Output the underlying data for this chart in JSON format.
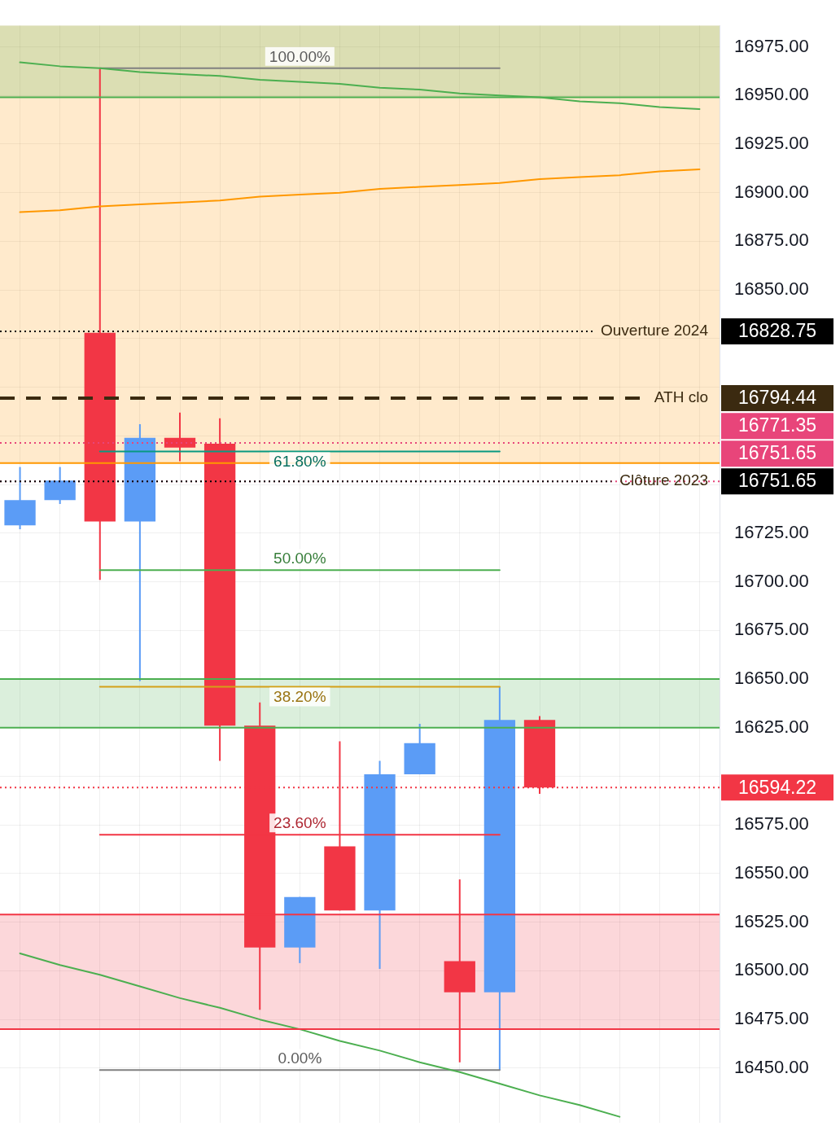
{
  "chart_data": {
    "type": "candlestick",
    "categories": [
      null,
      null,
      null,
      null,
      null,
      null,
      null,
      null,
      null,
      null,
      null,
      null,
      null,
      null,
      null,
      null,
      null,
      null
    ],
    "ohlc": [
      [
        16729,
        16759,
        16727,
        16742
      ],
      [
        16742,
        16759,
        16740,
        16752
      ],
      [
        16828,
        16964,
        16701,
        16731
      ],
      [
        16731,
        16781,
        16649,
        16774
      ],
      [
        16774,
        16787,
        16762,
        16769
      ],
      [
        16771,
        16784,
        16608,
        16626
      ],
      [
        16626,
        16638,
        16480,
        16512
      ],
      [
        16512,
        16538,
        16504,
        16538
      ],
      [
        16564,
        16618,
        16531,
        16531
      ],
      [
        16531,
        16608,
        16501,
        16601
      ],
      [
        16601,
        16627,
        16601,
        16617
      ],
      [
        16505,
        16547,
        16453,
        16489
      ],
      [
        16489,
        16646,
        16449,
        16629
      ],
      [
        16629,
        16631,
        16591,
        16594.22
      ],
      null,
      null,
      null,
      null
    ],
    "colors": [
      "#5b9cf6",
      "#5b9cf6",
      "#f23645",
      "#5b9cf6",
      "#f23645",
      "#f23645",
      "#f23645",
      "#5b9cf6",
      "#f23645",
      "#5b9cf6",
      "#5b9cf6",
      "#f23645",
      "#5b9cf6",
      "#f23645",
      null,
      null,
      null,
      null
    ],
    "ylim": [
      16422,
      16986
    ],
    "yticks": [
      {
        "value": 16450,
        "label": "16450.00"
      },
      {
        "value": 16475,
        "label": "16475.00"
      },
      {
        "value": 16500,
        "label": "16500.00"
      },
      {
        "value": 16525,
        "label": "16525.00"
      },
      {
        "value": 16550,
        "label": "16550.00"
      },
      {
        "value": 16575,
        "label": "16575.00"
      },
      {
        "value": 16600,
        "label": null
      },
      {
        "value": 16625,
        "label": "16625.00"
      },
      {
        "value": 16650,
        "label": "16650.00"
      },
      {
        "value": 16675,
        "label": "16675.00"
      },
      {
        "value": 16700,
        "label": "16700.00"
      },
      {
        "value": 16725,
        "label": "16725.00"
      },
      {
        "value": 16750,
        "label": null
      },
      {
        "value": 16775,
        "label": null
      },
      {
        "value": 16800,
        "label": null
      },
      {
        "value": 16825,
        "label": null
      },
      {
        "value": 16850,
        "label": "16850.00"
      },
      {
        "value": 16875,
        "label": "16875.00"
      },
      {
        "value": 16900,
        "label": "16900.00"
      },
      {
        "value": 16925,
        "label": "16925.00"
      },
      {
        "value": 16950,
        "label": "16950.00"
      },
      {
        "value": 16975,
        "label": "16975.00"
      }
    ],
    "grid": true,
    "tick_labels": "y",
    "bands": [
      {
        "axis": "y",
        "from": 16761,
        "to": 16986,
        "color": "#ff9800"
      },
      {
        "axis": "y",
        "from": 16949,
        "to": 16986,
        "color": "#4caf50"
      },
      {
        "axis": "y",
        "from": 16625,
        "to": 16650,
        "color": "#4caf50"
      },
      {
        "axis": "y",
        "from": 16470,
        "to": 16529,
        "color": "#f23645"
      }
    ],
    "series": [
      {
        "type": "line",
        "color": "#4caf50",
        "values": [
          16967,
          16965,
          16964,
          16962,
          16961,
          16960,
          16958,
          16957,
          16956,
          16954,
          16953,
          16951,
          16950,
          16949,
          16947,
          16946,
          16944,
          16943
        ]
      },
      {
        "type": "line",
        "color": "#ff9800",
        "values": [
          16890,
          16891,
          16893,
          16894,
          16895,
          16896,
          16898,
          16899,
          16900,
          16902,
          16903,
          16904,
          16905,
          16907,
          16908,
          16909,
          16911,
          16912
        ]
      },
      {
        "type": "line",
        "color": "#4caf50",
        "values": [
          16509,
          16503,
          16498,
          16492,
          16486,
          16481,
          16475,
          16470,
          16464,
          16459,
          16453,
          16448,
          16442,
          16436,
          16431,
          16425,
          null,
          null
        ]
      },
      {
        "type": "line",
        "name": "100.00%",
        "color": "#808080",
        "values": [
          null,
          null,
          16964,
          16964,
          16964,
          16964,
          16964,
          16964,
          16964,
          16964,
          16964,
          16964,
          16964,
          null,
          null,
          null,
          null,
          null
        ]
      },
      {
        "type": "line",
        "name": "61.80%",
        "color": "#089981",
        "values": [
          null,
          null,
          16767,
          16767,
          16767,
          16767,
          16767,
          16767,
          16767,
          16767,
          16767,
          16767,
          16767,
          null,
          null,
          null,
          null,
          null
        ]
      },
      {
        "type": "line",
        "name": "50.00%",
        "color": "#4caf50",
        "values": [
          null,
          null,
          16706,
          16706,
          16706,
          16706,
          16706,
          16706,
          16706,
          16706,
          16706,
          16706,
          16706,
          null,
          null,
          null,
          null,
          null
        ]
      },
      {
        "type": "line",
        "name": "38.20%",
        "color": "#d4a017",
        "values": [
          null,
          null,
          16646,
          16646,
          16646,
          16646,
          16646,
          16646,
          16646,
          16646,
          16646,
          16646,
          16646,
          null,
          null,
          null,
          null,
          null
        ]
      },
      {
        "type": "line",
        "name": "23.60%",
        "color": "#f23645",
        "values": [
          null,
          null,
          16570,
          16570,
          16570,
          16570,
          16570,
          16570,
          16570,
          16570,
          16570,
          16570,
          16570,
          null,
          null,
          null,
          null,
          null
        ]
      },
      {
        "type": "line",
        "name": "0.00%",
        "color": "#808080",
        "values": [
          null,
          null,
          16449,
          16449,
          16449,
          16449,
          16449,
          16449,
          16449,
          16449,
          16449,
          16449,
          16449,
          null,
          null,
          null,
          null,
          null
        ]
      }
    ],
    "ref_lines": [
      {
        "axis": "y",
        "value": 16828.75,
        "label": "Ouverture 2024",
        "color": "#000000",
        "line_style": "dotted"
      },
      {
        "axis": "y",
        "value": 16794.44,
        "label": "ATH clo",
        "color": "#3b2a10",
        "line_style": "dashed"
      },
      {
        "axis": "y",
        "value": 16771.35,
        "label": null,
        "color": "#e8457a",
        "line_style": "dotted"
      },
      {
        "axis": "y",
        "value": 16751.65,
        "label": null,
        "color": "#e8457a",
        "line_style": "dotted"
      },
      {
        "axis": "y",
        "value": 16751.65,
        "label": "Clôture 2023",
        "color": "#000000",
        "line_style": "dotted"
      },
      {
        "axis": "y",
        "value": 16594.22,
        "label": null,
        "color": "#f23645",
        "line_style": "dotted"
      },
      {
        "axis": "y",
        "value": 16761,
        "label": null,
        "color": "#ff9800",
        "line_style": "solid"
      },
      {
        "axis": "y",
        "value": 16949,
        "label": null,
        "color": "#4caf50",
        "line_style": "solid"
      },
      {
        "axis": "y",
        "value": 16650,
        "label": null,
        "color": "#4caf50",
        "line_style": "solid"
      },
      {
        "axis": "y",
        "value": 16625,
        "label": null,
        "color": "#4caf50",
        "line_style": "solid"
      },
      {
        "axis": "y",
        "value": 16529,
        "label": null,
        "color": "#f23645",
        "line_style": "solid"
      },
      {
        "axis": "y",
        "value": 16470,
        "label": null,
        "color": "#f23645",
        "line_style": "solid"
      }
    ],
    "annotations": [
      "16828.75",
      "16794.44",
      "16771.35",
      "16751.65",
      "16751.65",
      "16594.22"
    ]
  }
}
